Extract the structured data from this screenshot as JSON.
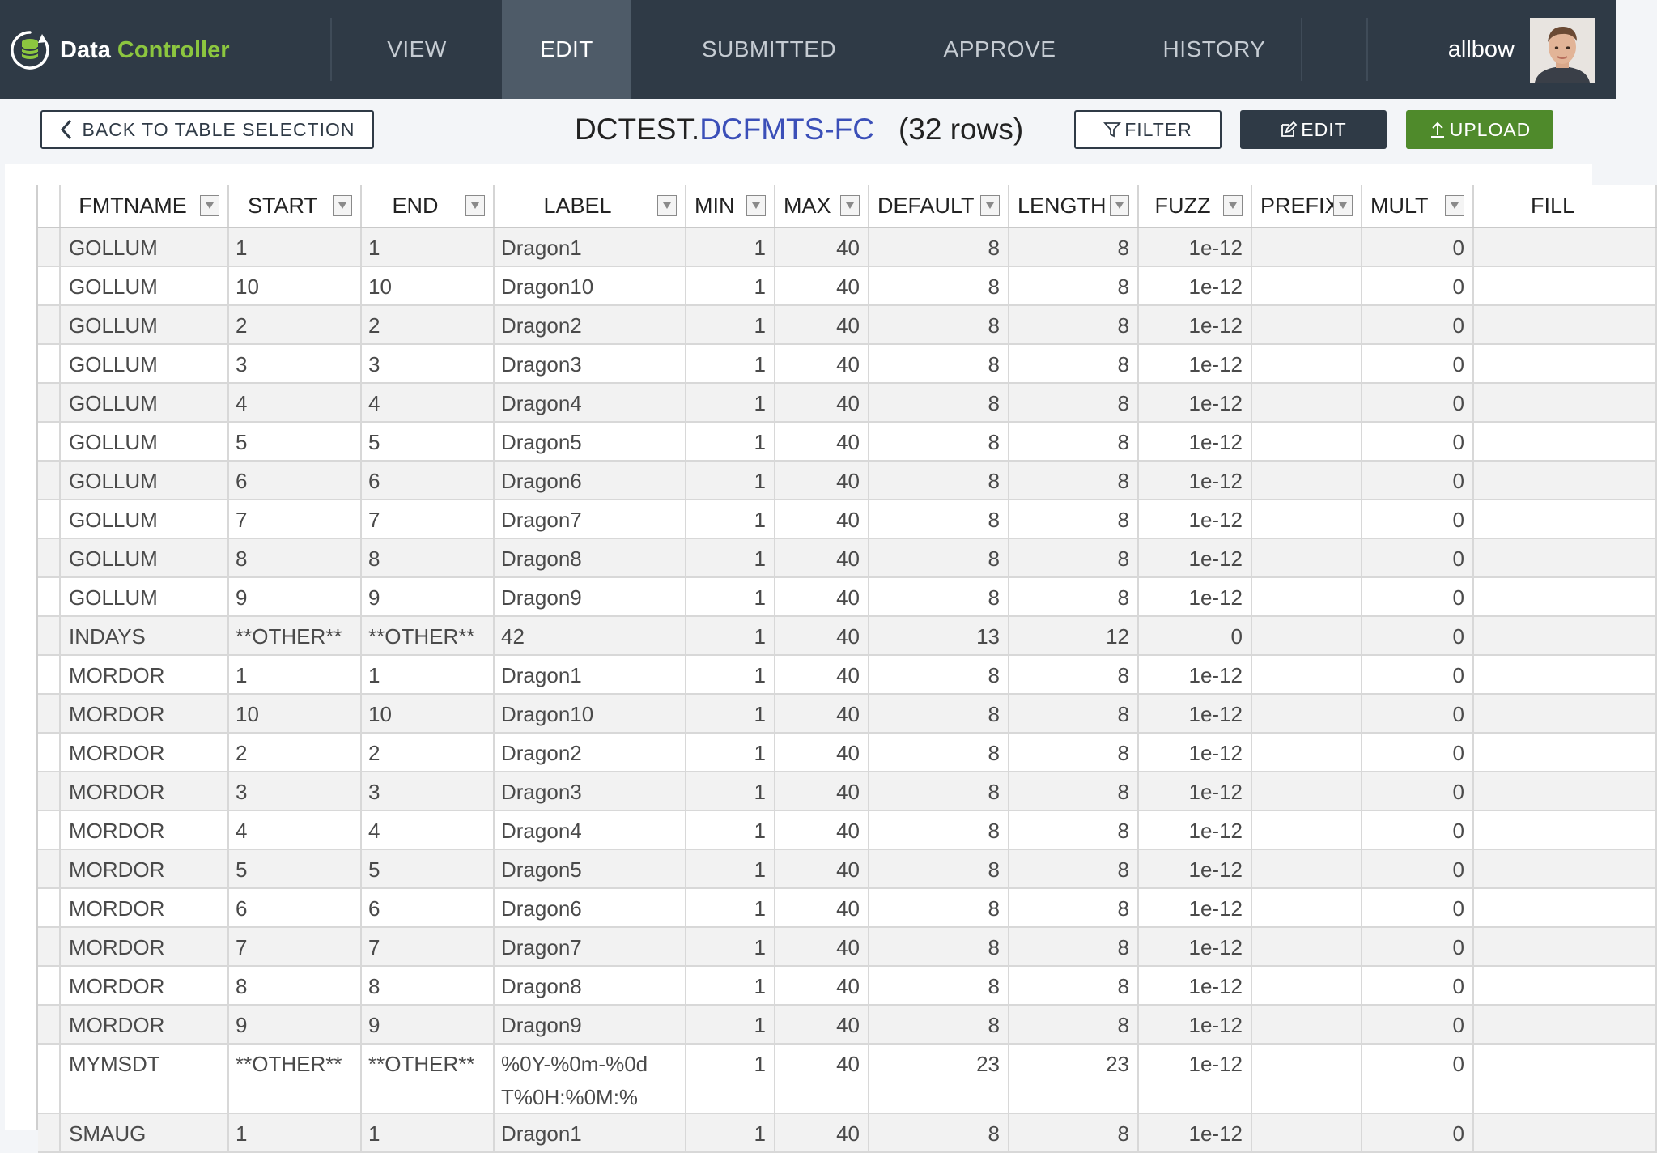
{
  "brand": {
    "name_part1": "Data",
    "name_part2": "Controller"
  },
  "nav": {
    "view": "VIEW",
    "edit": "EDIT",
    "submitted": "SUBMITTED",
    "approve": "APPROVE",
    "history": "HISTORY"
  },
  "user": {
    "name": "allbow"
  },
  "toolbar": {
    "back_label": "BACK TO TABLE SELECTION",
    "library": "DCTEST.",
    "table": "DCFMTS-FC",
    "row_count": "(32 rows)",
    "filter_label": "FILTER",
    "edit_label": "EDIT",
    "upload_label": "UPLOAD"
  },
  "colors": {
    "header_bg": "#2f3a46",
    "accent_green": "#8cc63f",
    "upload_green": "#4f8a2b",
    "table_link": "#3b4fb8"
  },
  "grid": {
    "columns": [
      "FMTNAME",
      "START",
      "END",
      "LABEL",
      "MIN",
      "MAX",
      "DEFAULT",
      "LENGTH",
      "FUZZ",
      "PREFIX",
      "MULT",
      "FILL"
    ],
    "rows": [
      [
        "GOLLUM",
        "1",
        "1",
        "Dragon1",
        "1",
        "40",
        "8",
        "8",
        "1e-12",
        "",
        "0",
        ""
      ],
      [
        "GOLLUM",
        "10",
        "10",
        "Dragon10",
        "1",
        "40",
        "8",
        "8",
        "1e-12",
        "",
        "0",
        ""
      ],
      [
        "GOLLUM",
        "2",
        "2",
        "Dragon2",
        "1",
        "40",
        "8",
        "8",
        "1e-12",
        "",
        "0",
        ""
      ],
      [
        "GOLLUM",
        "3",
        "3",
        "Dragon3",
        "1",
        "40",
        "8",
        "8",
        "1e-12",
        "",
        "0",
        ""
      ],
      [
        "GOLLUM",
        "4",
        "4",
        "Dragon4",
        "1",
        "40",
        "8",
        "8",
        "1e-12",
        "",
        "0",
        ""
      ],
      [
        "GOLLUM",
        "5",
        "5",
        "Dragon5",
        "1",
        "40",
        "8",
        "8",
        "1e-12",
        "",
        "0",
        ""
      ],
      [
        "GOLLUM",
        "6",
        "6",
        "Dragon6",
        "1",
        "40",
        "8",
        "8",
        "1e-12",
        "",
        "0",
        ""
      ],
      [
        "GOLLUM",
        "7",
        "7",
        "Dragon7",
        "1",
        "40",
        "8",
        "8",
        "1e-12",
        "",
        "0",
        ""
      ],
      [
        "GOLLUM",
        "8",
        "8",
        "Dragon8",
        "1",
        "40",
        "8",
        "8",
        "1e-12",
        "",
        "0",
        ""
      ],
      [
        "GOLLUM",
        "9",
        "9",
        "Dragon9",
        "1",
        "40",
        "8",
        "8",
        "1e-12",
        "",
        "0",
        ""
      ],
      [
        "INDAYS",
        "**OTHER**",
        "**OTHER**",
        "42",
        "1",
        "40",
        "13",
        "12",
        "0",
        "",
        "0",
        ""
      ],
      [
        "MORDOR",
        "1",
        "1",
        "Dragon1",
        "1",
        "40",
        "8",
        "8",
        "1e-12",
        "",
        "0",
        ""
      ],
      [
        "MORDOR",
        "10",
        "10",
        "Dragon10",
        "1",
        "40",
        "8",
        "8",
        "1e-12",
        "",
        "0",
        ""
      ],
      [
        "MORDOR",
        "2",
        "2",
        "Dragon2",
        "1",
        "40",
        "8",
        "8",
        "1e-12",
        "",
        "0",
        ""
      ],
      [
        "MORDOR",
        "3",
        "3",
        "Dragon3",
        "1",
        "40",
        "8",
        "8",
        "1e-12",
        "",
        "0",
        ""
      ],
      [
        "MORDOR",
        "4",
        "4",
        "Dragon4",
        "1",
        "40",
        "8",
        "8",
        "1e-12",
        "",
        "0",
        ""
      ],
      [
        "MORDOR",
        "5",
        "5",
        "Dragon5",
        "1",
        "40",
        "8",
        "8",
        "1e-12",
        "",
        "0",
        ""
      ],
      [
        "MORDOR",
        "6",
        "6",
        "Dragon6",
        "1",
        "40",
        "8",
        "8",
        "1e-12",
        "",
        "0",
        ""
      ],
      [
        "MORDOR",
        "7",
        "7",
        "Dragon7",
        "1",
        "40",
        "8",
        "8",
        "1e-12",
        "",
        "0",
        ""
      ],
      [
        "MORDOR",
        "8",
        "8",
        "Dragon8",
        "1",
        "40",
        "8",
        "8",
        "1e-12",
        "",
        "0",
        ""
      ],
      [
        "MORDOR",
        "9",
        "9",
        "Dragon9",
        "1",
        "40",
        "8",
        "8",
        "1e-12",
        "",
        "0",
        ""
      ],
      [
        "MYMSDT",
        "**OTHER**",
        "**OTHER**",
        "%0Y-%0m-%0dT%0H:%0M:%",
        "1",
        "40",
        "23",
        "23",
        "1e-12",
        "",
        "0",
        ""
      ],
      [
        "SMAUG",
        "1",
        "1",
        "Dragon1",
        "1",
        "40",
        "8",
        "8",
        "1e-12",
        "",
        "0",
        ""
      ]
    ]
  }
}
